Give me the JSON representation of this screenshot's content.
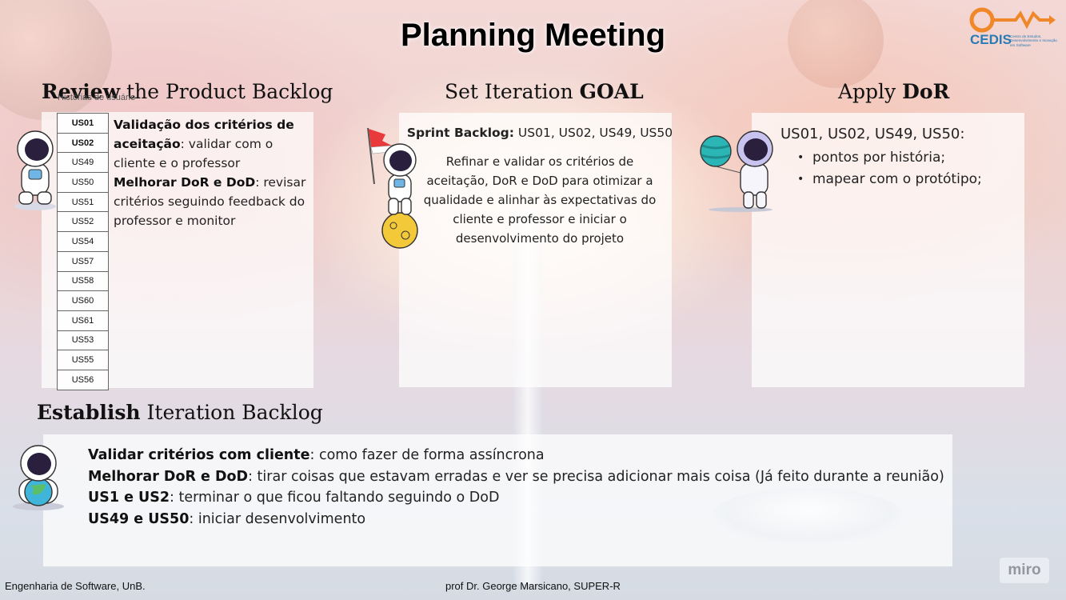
{
  "title": "Planning Meeting",
  "logo": {
    "name": "CEDIS",
    "subtitle": "Centro de Estudos, Desenvolvimento e Inovação em Software"
  },
  "review": {
    "heading_bold": "Review",
    "heading_rest": " the Product Backlog",
    "table_caption": "Histórias de usuário",
    "stories": [
      {
        "id": "US01",
        "bold": true
      },
      {
        "id": "US02",
        "bold": true
      },
      {
        "id": "US49",
        "bold": false
      },
      {
        "id": "US50",
        "bold": false
      },
      {
        "id": "US51",
        "bold": false
      },
      {
        "id": "US52",
        "bold": false
      },
      {
        "id": "US54",
        "bold": false
      },
      {
        "id": "US57",
        "bold": false
      },
      {
        "id": "US58",
        "bold": false
      },
      {
        "id": "US60",
        "bold": false
      },
      {
        "id": "US61",
        "bold": false
      },
      {
        "id": "US53",
        "bold": false
      },
      {
        "id": "US55",
        "bold": false
      },
      {
        "id": "US56",
        "bold": false
      }
    ],
    "item1_bold": "Validação dos critérios de aceitação",
    "item1_rest": ": validar com o cliente e o professor",
    "item2_bold": "Melhorar DoR e DoD",
    "item2_rest": ": revisar critérios seguindo feedback do professor e monitor"
  },
  "goal": {
    "heading_light": "Set Iteration ",
    "heading_bold": "GOAL",
    "sprint_label": "Sprint Backlog:",
    "sprint_items": " US01, US02, US49, US50",
    "text": "Refinar e validar os critérios de aceitação, DoR e DoD para otimizar a qualidade e alinhar às expectativas do cliente e professor e iniciar o desenvolvimento do projeto"
  },
  "dor": {
    "heading_light": "Apply ",
    "heading_bold": "DoR",
    "stories": "US01, US02, US49, US50:",
    "bullets": [
      "pontos por história;",
      "mapear com o protótipo;"
    ]
  },
  "iteration": {
    "heading_bold": "Establish",
    "heading_rest": " Iteration Backlog",
    "lines": [
      {
        "bold": "Validar critérios com cliente",
        "rest": ": como fazer de forma assíncrona"
      },
      {
        "bold": "Melhorar DoR e DoD",
        "rest": ": tirar coisas que estavam erradas e ver se precisa adicionar mais coisa (Já feito durante a reunião)"
      },
      {
        "bold": "US1 e US2",
        "rest": ": terminar o que ficou faltando seguindo o DoD"
      },
      {
        "bold": "US49 e US50",
        "rest": ": iniciar desenvolvimento"
      }
    ]
  },
  "footer": {
    "left": "Engenharia de Software, UnB.",
    "center": "prof Dr. George Marsicano, SUPER-R"
  },
  "watermark": "miro"
}
